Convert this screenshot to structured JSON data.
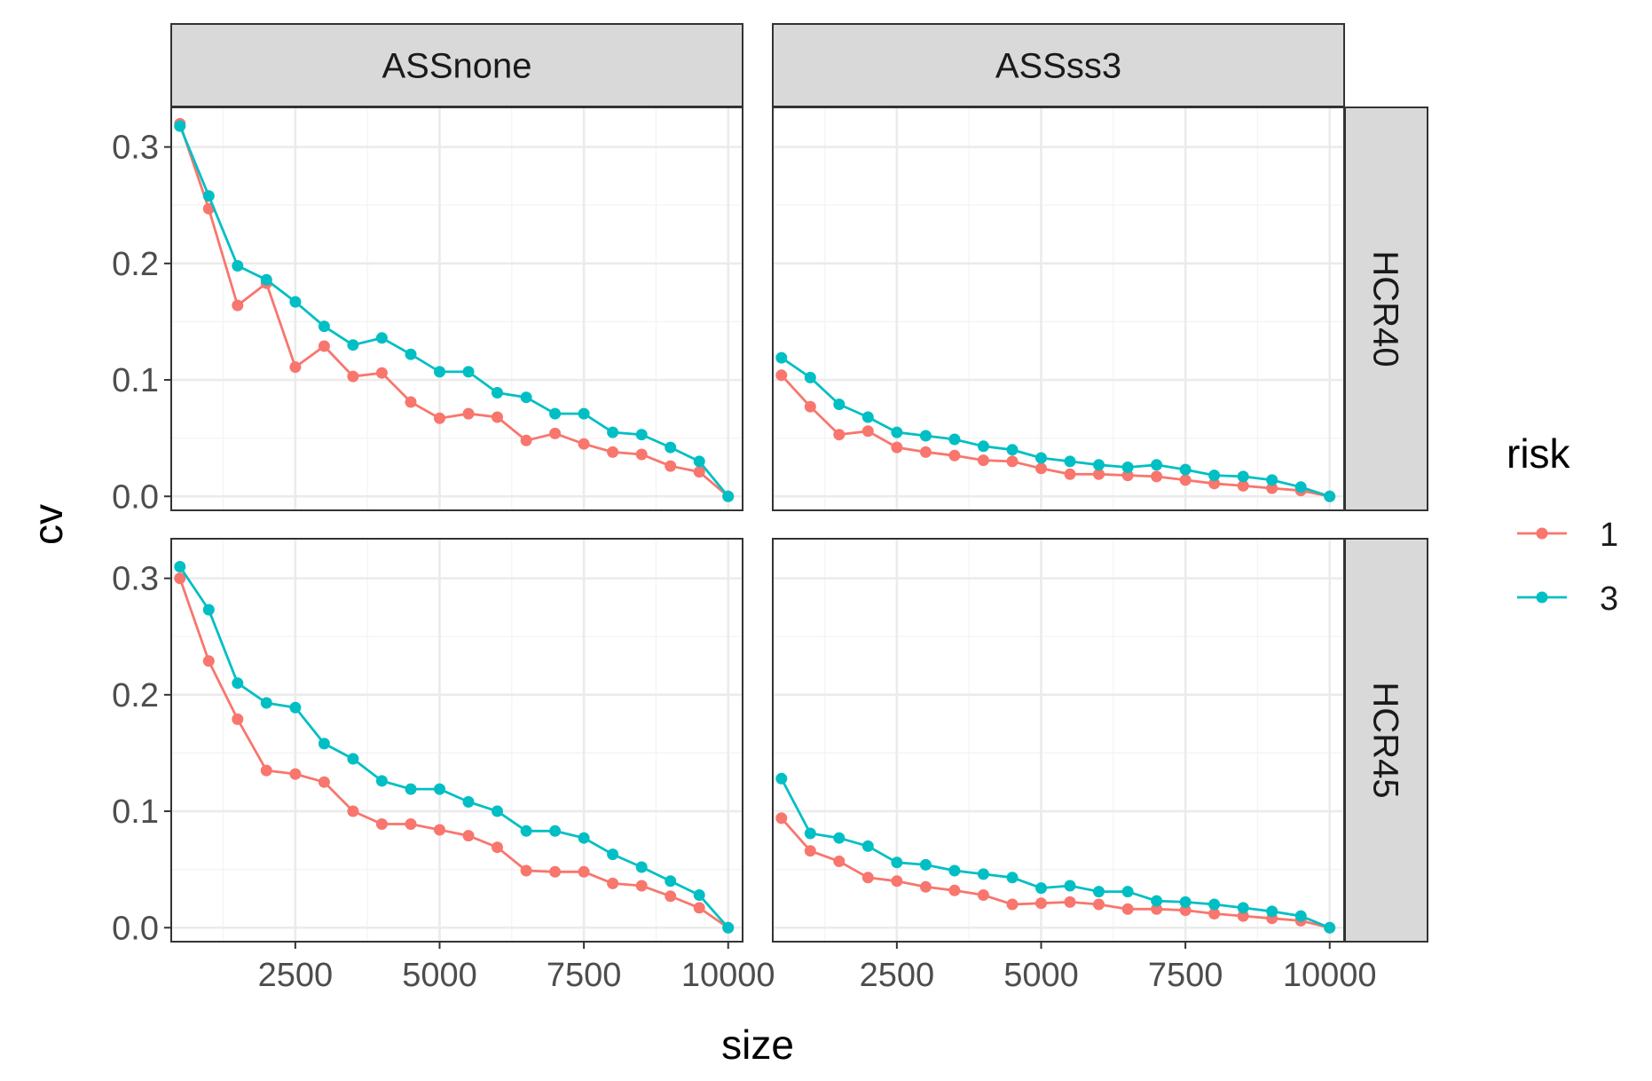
{
  "chart_data": {
    "type": "line",
    "xlabel": "size",
    "ylabel": "cv",
    "xlim": [
      350,
      10250
    ],
    "ylim": [
      -0.012,
      0.334
    ],
    "x_ticks": [
      2500,
      5000,
      7500,
      10000
    ],
    "x_tick_labels": [
      "2500",
      "5000",
      "7500",
      "10000"
    ],
    "y_ticks": [
      0.0,
      0.1,
      0.2,
      0.3
    ],
    "y_tick_labels": [
      "0.0",
      "0.1",
      "0.2",
      "0.3"
    ],
    "grid": true,
    "legend": {
      "title": "risk",
      "position": "right",
      "entries": [
        "1",
        "3"
      ]
    },
    "series_colors": {
      "1": "#F8766D",
      "3": "#00BFC4"
    },
    "x": [
      500,
      1000,
      1500,
      2000,
      2500,
      3000,
      3500,
      4000,
      4500,
      5000,
      5500,
      6000,
      6500,
      7000,
      7500,
      8000,
      8500,
      9000,
      9500,
      10000
    ],
    "col_facets": [
      "ASSnone",
      "ASSss3"
    ],
    "row_facets": [
      "HCR40",
      "HCR45"
    ],
    "panels": [
      {
        "col": "ASSnone",
        "row": "HCR40",
        "series": [
          {
            "name": "1",
            "values": [
              0.32,
              0.247,
              0.164,
              0.183,
              0.111,
              0.129,
              0.103,
              0.106,
              0.081,
              0.067,
              0.071,
              0.068,
              0.048,
              0.054,
              0.045,
              0.038,
              0.036,
              0.026,
              0.021,
              0.0
            ]
          },
          {
            "name": "3",
            "values": [
              0.318,
              0.258,
              0.198,
              0.186,
              0.167,
              0.146,
              0.13,
              0.136,
              0.122,
              0.107,
              0.107,
              0.089,
              0.085,
              0.071,
              0.071,
              0.055,
              0.053,
              0.042,
              0.03,
              0.0
            ]
          }
        ]
      },
      {
        "col": "ASSss3",
        "row": "HCR40",
        "series": [
          {
            "name": "1",
            "values": [
              0.104,
              0.077,
              0.053,
              0.056,
              0.042,
              0.038,
              0.035,
              0.031,
              0.03,
              0.024,
              0.019,
              0.019,
              0.018,
              0.017,
              0.014,
              0.011,
              0.009,
              0.007,
              0.005,
              0.0
            ]
          },
          {
            "name": "3",
            "values": [
              0.119,
              0.102,
              0.079,
              0.068,
              0.055,
              0.052,
              0.049,
              0.043,
              0.04,
              0.033,
              0.03,
              0.027,
              0.025,
              0.027,
              0.023,
              0.018,
              0.017,
              0.014,
              0.008,
              0.0
            ]
          }
        ]
      },
      {
        "col": "ASSnone",
        "row": "HCR45",
        "series": [
          {
            "name": "1",
            "values": [
              0.3,
              0.229,
              0.179,
              0.135,
              0.132,
              0.125,
              0.1,
              0.089,
              0.089,
              0.084,
              0.079,
              0.069,
              0.049,
              0.048,
              0.048,
              0.038,
              0.036,
              0.027,
              0.017,
              0.0
            ]
          },
          {
            "name": "3",
            "values": [
              0.31,
              0.273,
              0.21,
              0.193,
              0.189,
              0.158,
              0.145,
              0.126,
              0.119,
              0.119,
              0.108,
              0.1,
              0.083,
              0.083,
              0.077,
              0.063,
              0.052,
              0.04,
              0.028,
              0.0
            ]
          }
        ]
      },
      {
        "col": "ASSss3",
        "row": "HCR45",
        "series": [
          {
            "name": "1",
            "values": [
              0.094,
              0.066,
              0.057,
              0.043,
              0.04,
              0.035,
              0.032,
              0.028,
              0.02,
              0.021,
              0.022,
              0.02,
              0.016,
              0.016,
              0.015,
              0.012,
              0.01,
              0.008,
              0.006,
              0.0
            ]
          },
          {
            "name": "3",
            "values": [
              0.128,
              0.081,
              0.077,
              0.07,
              0.056,
              0.054,
              0.049,
              0.046,
              0.043,
              0.034,
              0.036,
              0.031,
              0.031,
              0.023,
              0.022,
              0.02,
              0.017,
              0.014,
              0.01,
              0.0
            ]
          }
        ]
      }
    ]
  }
}
